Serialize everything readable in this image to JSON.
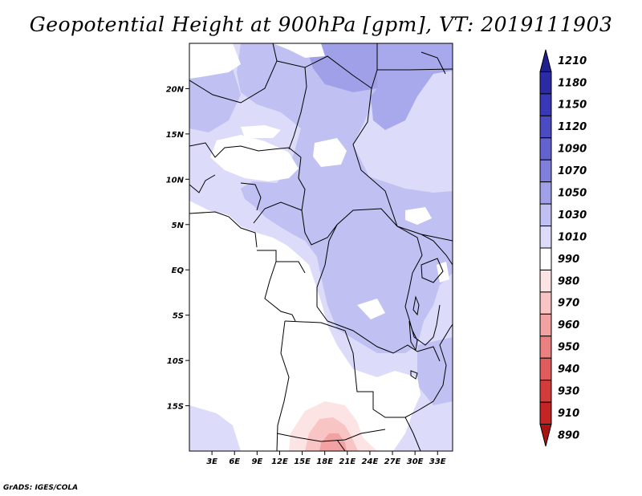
{
  "title": "Geopotential Height at 900hPa [gpm], VT: 2019111903",
  "credit": "GrADS: IGES/COLA",
  "map": {
    "lon_range": [
      0,
      35
    ],
    "lat_range": [
      -20,
      25
    ],
    "lon_ticks": [
      {
        "value": 3,
        "label": "3E"
      },
      {
        "value": 6,
        "label": "6E"
      },
      {
        "value": 9,
        "label": "9E"
      },
      {
        "value": 12,
        "label": "12E"
      },
      {
        "value": 15,
        "label": "15E"
      },
      {
        "value": 18,
        "label": "18E"
      },
      {
        "value": 21,
        "label": "21E"
      },
      {
        "value": 24,
        "label": "24E"
      },
      {
        "value": 27,
        "label": "27E"
      },
      {
        "value": 30,
        "label": "30E"
      },
      {
        "value": 33,
        "label": "33E"
      }
    ],
    "lat_ticks": [
      {
        "value": 20,
        "label": "20N"
      },
      {
        "value": 15,
        "label": "15N"
      },
      {
        "value": 10,
        "label": "10N"
      },
      {
        "value": 5,
        "label": "5N"
      },
      {
        "value": 0,
        "label": "EQ"
      },
      {
        "value": -5,
        "label": "5S"
      },
      {
        "value": -10,
        "label": "10S"
      },
      {
        "value": -15,
        "label": "15S"
      }
    ]
  },
  "colorbar": {
    "levels": [
      "1210",
      "1180",
      "1150",
      "1120",
      "1090",
      "1070",
      "1050",
      "1030",
      "1010",
      "990",
      "980",
      "970",
      "960",
      "950",
      "940",
      "930",
      "910",
      "890"
    ],
    "colors": [
      "#1f1f8f",
      "#2b2ba6",
      "#3838b8",
      "#4b4bc4",
      "#6363d0",
      "#8080dc",
      "#a0a0e8",
      "#c0c0f2",
      "#dcdcfa",
      "#ffffff",
      "#fde4e4",
      "#f9c4c4",
      "#f2a2a2",
      "#ea8080",
      "#e05c5c",
      "#d43c3c",
      "#c42424",
      "#a81414"
    ]
  }
}
